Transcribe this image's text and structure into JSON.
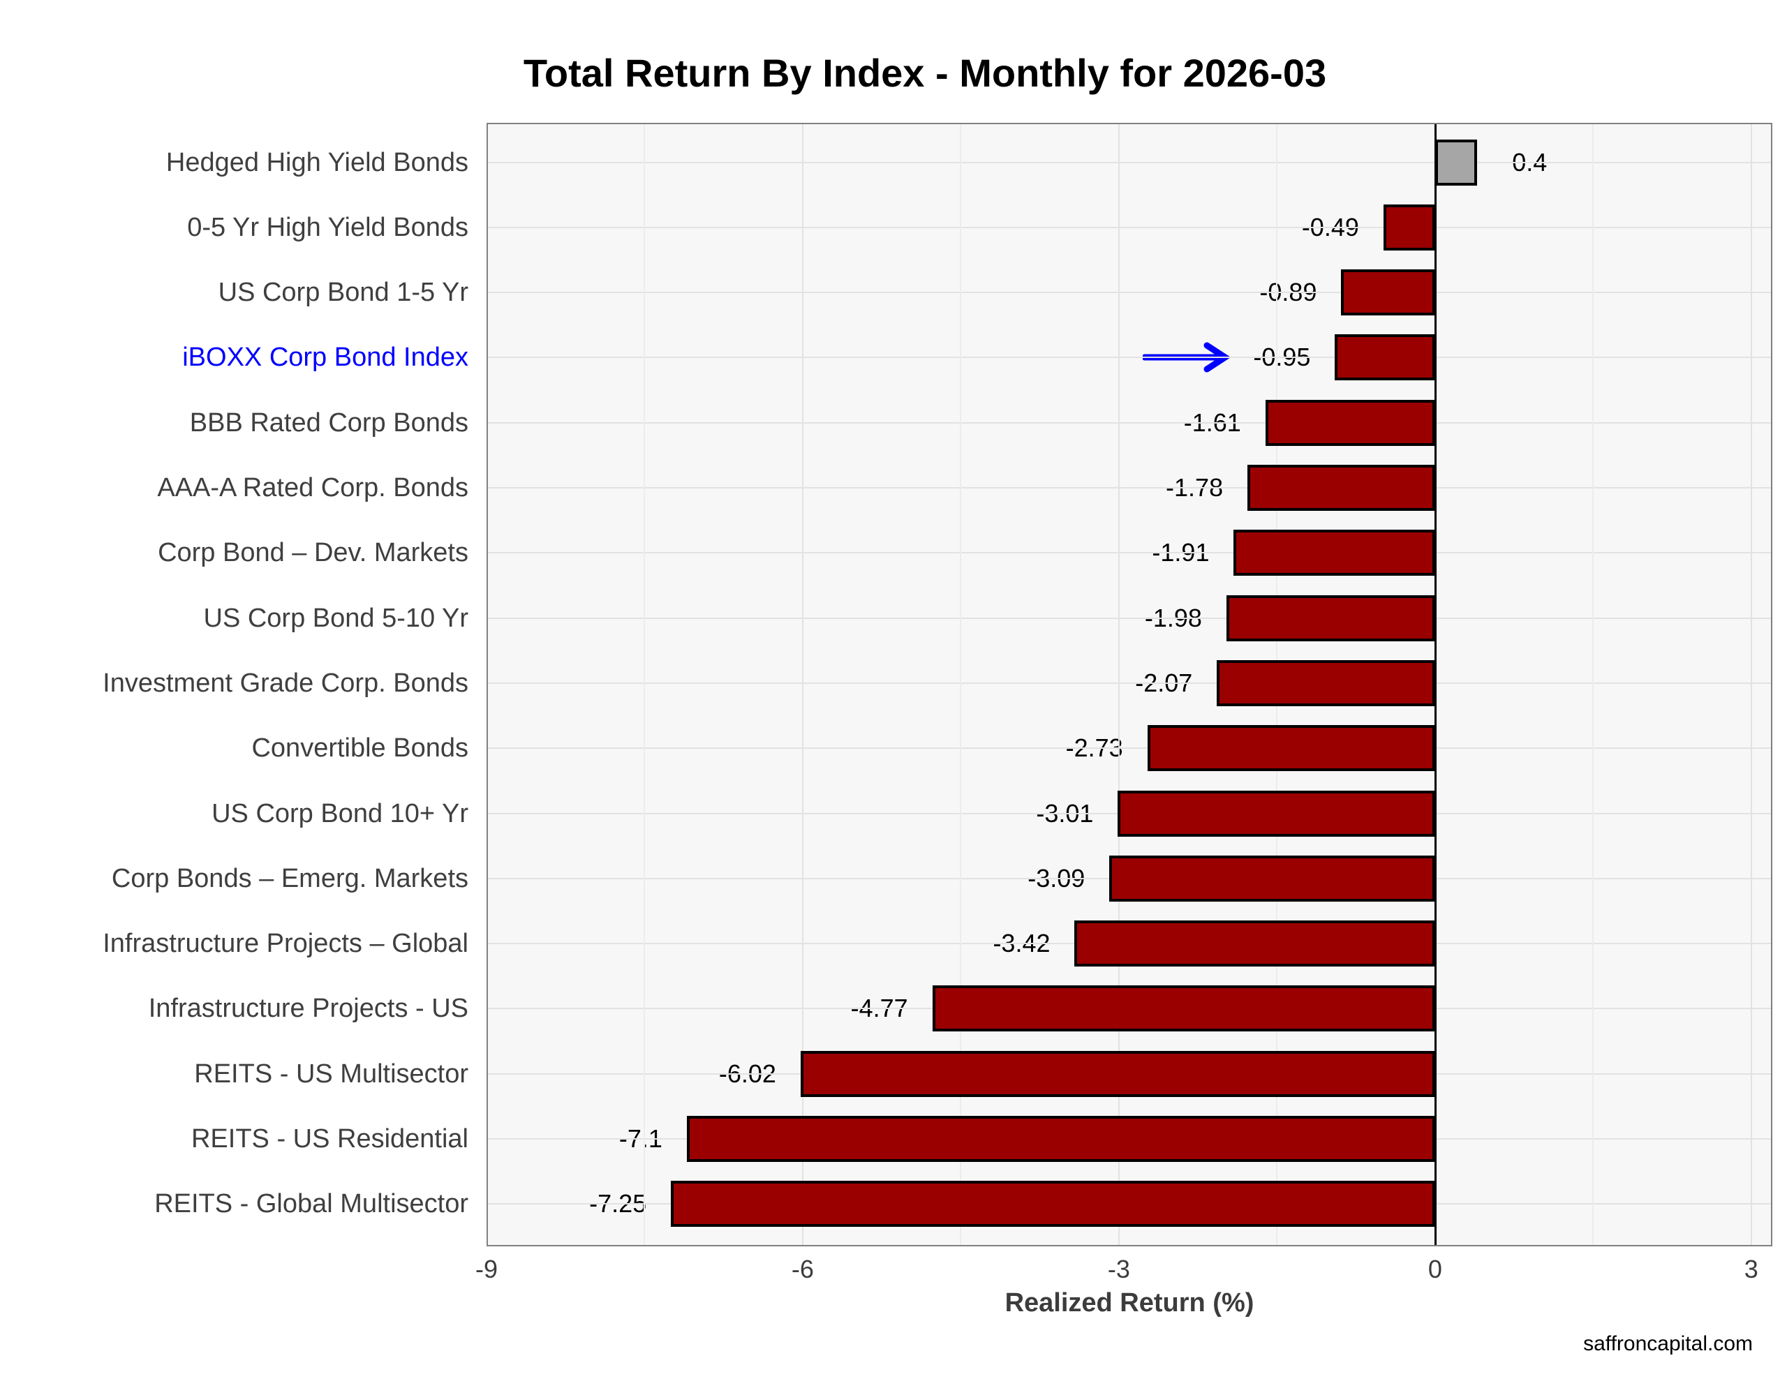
{
  "page": {
    "footer": "saffroncapital.com"
  },
  "chart_data": {
    "type": "bar",
    "orientation": "horizontal",
    "title": "Total Return By Index - Monthly for 2026-03",
    "xlabel": "Realized Return (%)",
    "ylabel": "",
    "xlim": [
      -9,
      3.2
    ],
    "x_ticks": [
      -9,
      -6,
      -3,
      0,
      3
    ],
    "x_tick_labels": [
      "-9",
      "-6",
      "-3",
      "0",
      "3"
    ],
    "x_minor_ticks": [
      -7.5,
      -4.5,
      -1.5,
      1.5
    ],
    "grid": true,
    "legend_position": "none",
    "categories": [
      "Hedged High Yield Bonds",
      "0-5 Yr High Yield Bonds",
      "US Corp Bond 1-5 Yr",
      "iBOXX Corp Bond Index",
      "BBB Rated Corp Bonds",
      "AAA-A Rated Corp. Bonds",
      "Corp Bond – Dev. Markets",
      "US Corp Bond 5-10 Yr",
      "Investment Grade Corp. Bonds",
      "Convertible Bonds",
      "US Corp Bond 10+ Yr",
      "Corp Bonds – Emerg. Markets",
      "Infrastructure Projects – Global",
      "Infrastructure Projects - US",
      "REITS - US Multisector",
      "REITS - US Residential",
      "REITS - Global Multisector"
    ],
    "values": [
      0.4,
      -0.49,
      -0.89,
      -0.95,
      -1.61,
      -1.78,
      -1.91,
      -1.98,
      -2.07,
      -2.73,
      -3.01,
      -3.09,
      -3.42,
      -4.77,
      -6.02,
      -7.1,
      -7.25
    ],
    "value_labels": [
      "0.4",
      "-0.49",
      "-0.89",
      "-0.95",
      "-1.61",
      "-1.78",
      "-1.91",
      "-1.98",
      "-2.07",
      "-2.73",
      "-3.01",
      "-3.09",
      "-3.42",
      "-4.77",
      "-6.02",
      "-7.1",
      "-7.25"
    ],
    "highlight": {
      "category": "iBOXX Corp Bond Index",
      "index": 3,
      "label_color": "#0000FF",
      "annotation": "right-arrow"
    },
    "colors": {
      "bar_negative": "#9B0000",
      "bar_positive": "#A6A6A6",
      "bar_border": "#000000",
      "category_label": "#3F3F3F",
      "axis_text": "#3C3C3C",
      "plot_bg": "#F7F7F7",
      "grid_major": "#E2E2E2",
      "grid_minor": "#ECECEC",
      "plot_border": "#808080",
      "zero_line": "#000000",
      "arrow": "#0000FF"
    }
  }
}
